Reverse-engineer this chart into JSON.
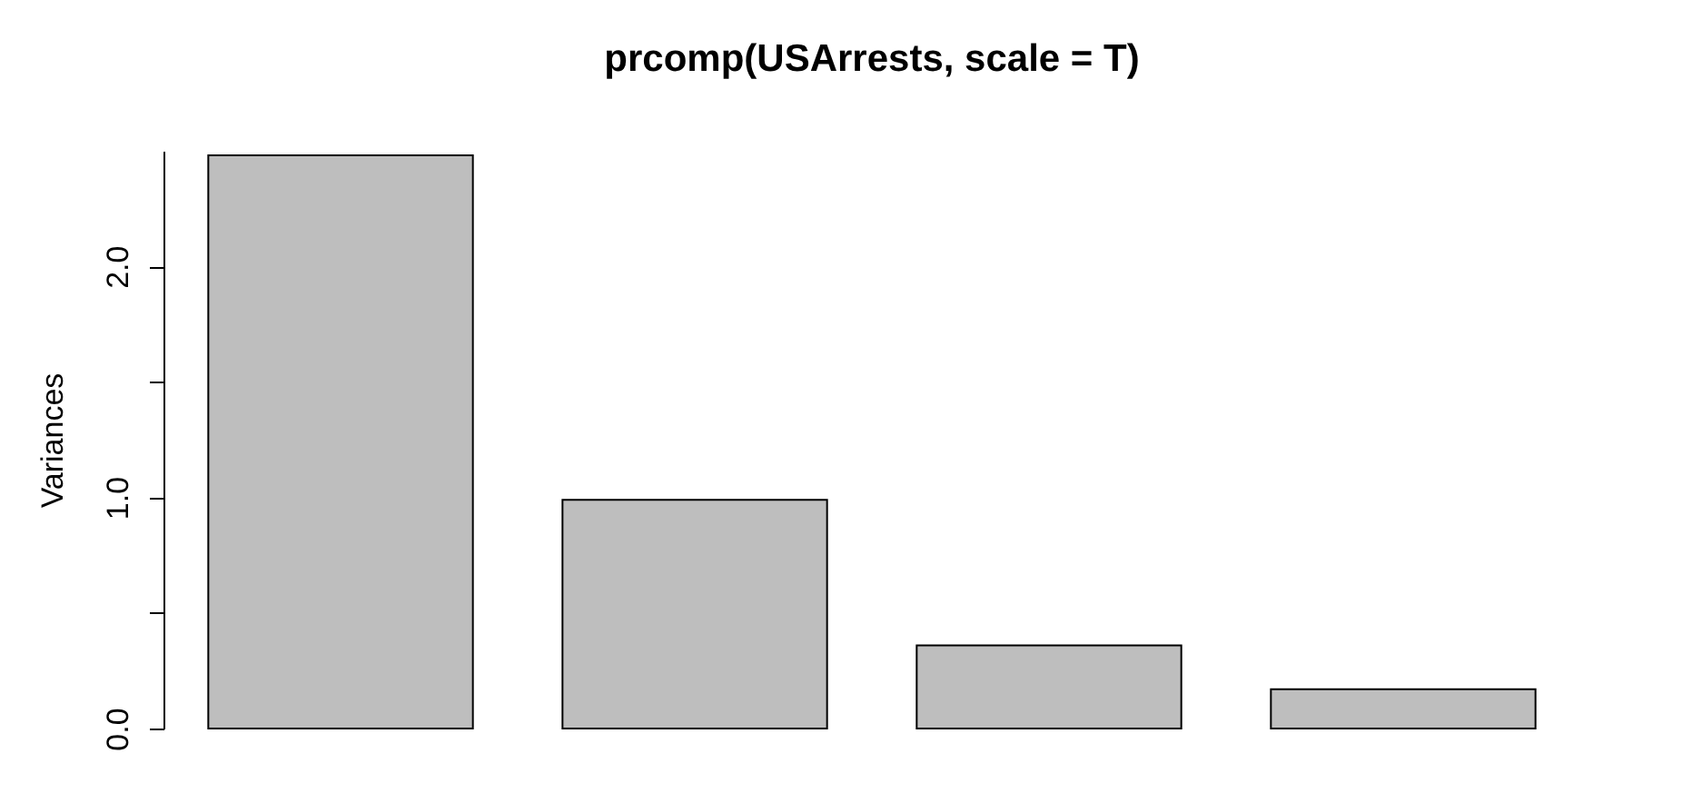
{
  "chart_data": {
    "type": "bar",
    "title": "prcomp(USArrests, scale = T)",
    "ylabel": "Variances",
    "categories": [
      null,
      null,
      null,
      null
    ],
    "values": [
      2.48,
      0.99,
      0.36,
      0.17
    ],
    "color": "#bebebe",
    "ylim": [
      0,
      2.5
    ],
    "yticks": [
      {
        "value": 0,
        "label": "0.0"
      },
      {
        "value": 0.5,
        "label": null
      },
      {
        "value": 1,
        "label": "1.0"
      },
      {
        "value": 1.5,
        "label": null
      },
      {
        "value": 2,
        "label": "2.0"
      }
    ],
    "tick_labels": "y",
    "grid": false
  }
}
